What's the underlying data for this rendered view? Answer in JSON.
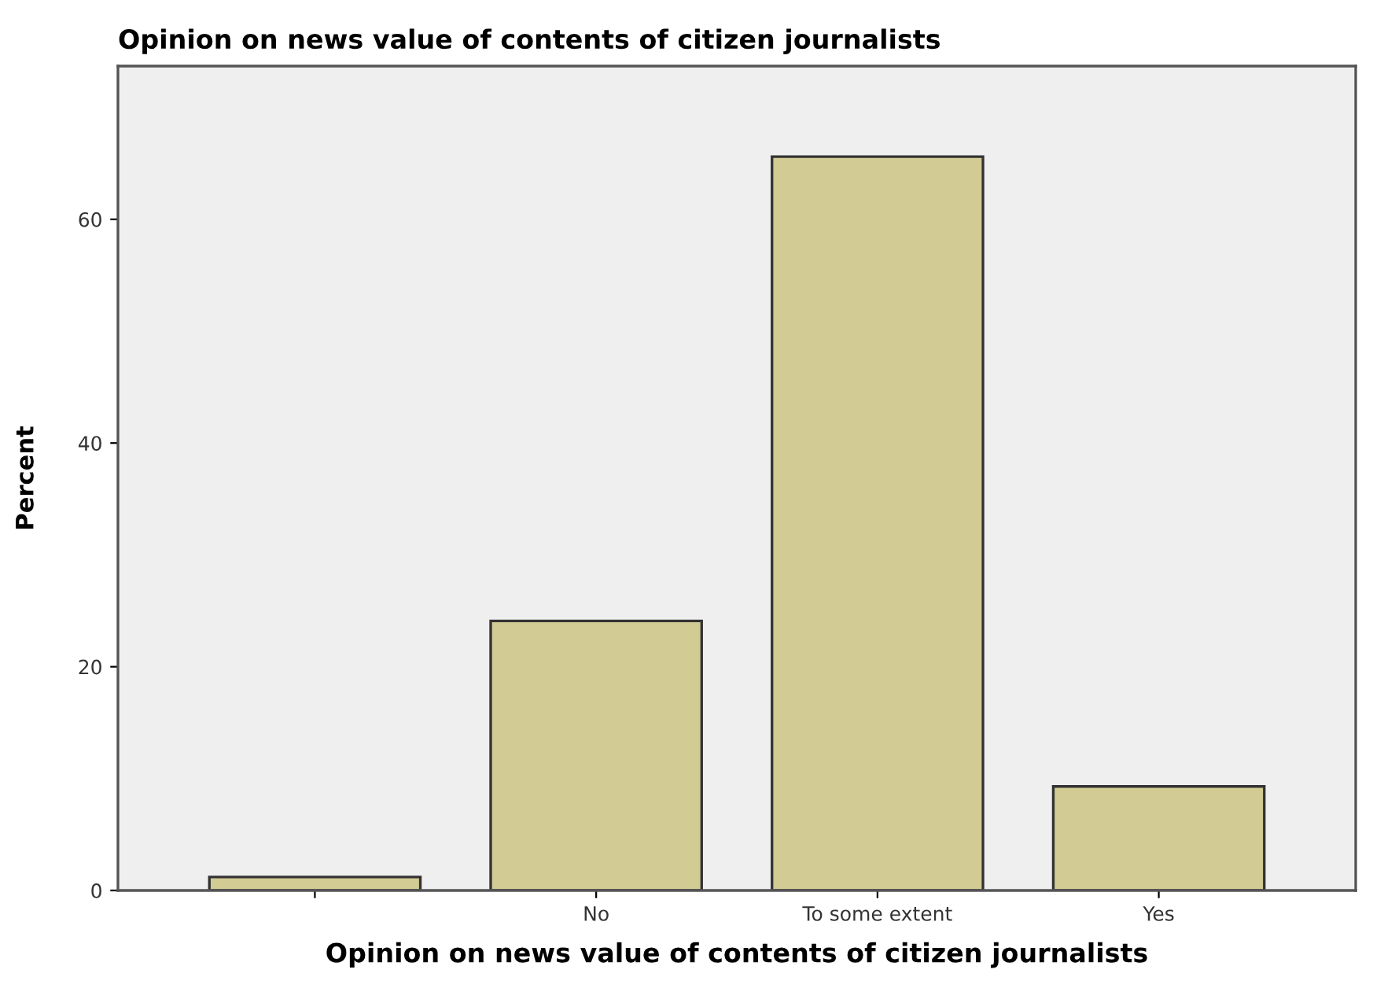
{
  "chart_data": {
    "type": "bar",
    "title": "Opinion on news value of contents of citizen journalists",
    "xlabel": "Opinion on news value of contents of citizen journalists",
    "ylabel": "Percent",
    "categories": [
      null,
      "No",
      "To some extent",
      "Yes"
    ],
    "values": [
      1.2,
      24.1,
      65.6,
      9.3
    ],
    "color": "#d3cb94",
    "ylim": [
      0,
      73.7
    ],
    "yticks": [
      0,
      20,
      40,
      60
    ],
    "grid": false,
    "legend": false
  }
}
